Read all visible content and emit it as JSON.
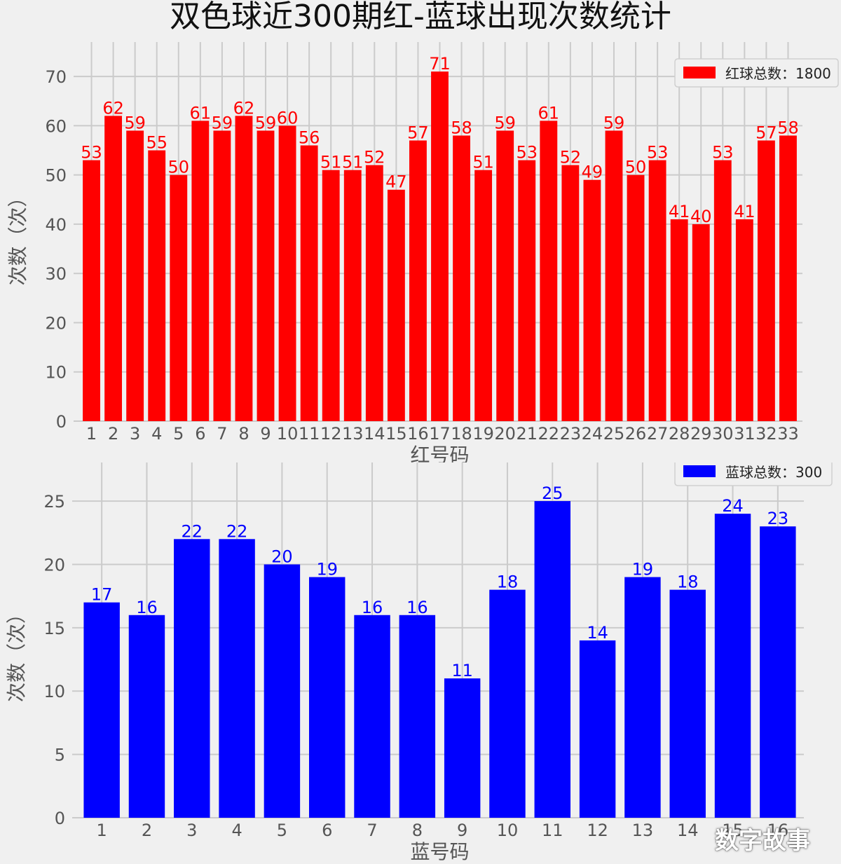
{
  "title": "双色球近300期红-蓝球出现次数统计",
  "watermark": "数字故事",
  "chart_data": [
    {
      "type": "bar",
      "categories": [
        "1",
        "2",
        "3",
        "4",
        "5",
        "6",
        "7",
        "8",
        "9",
        "10",
        "11",
        "12",
        "13",
        "14",
        "15",
        "16",
        "17",
        "18",
        "19",
        "20",
        "21",
        "22",
        "23",
        "24",
        "25",
        "26",
        "27",
        "28",
        "29",
        "30",
        "31",
        "32",
        "33"
      ],
      "values": [
        53,
        62,
        59,
        55,
        50,
        61,
        59,
        62,
        59,
        60,
        56,
        51,
        51,
        52,
        47,
        57,
        71,
        58,
        51,
        59,
        53,
        61,
        52,
        49,
        59,
        50,
        53,
        41,
        40,
        53,
        41,
        57,
        58
      ],
      "color": "#ff0000",
      "xlabel": "红号码",
      "ylabel": "次数（次）",
      "ylim": [
        0,
        75
      ],
      "yticks": [
        0,
        10,
        20,
        30,
        40,
        50,
        60,
        70
      ],
      "legend": "红球总数：1800",
      "legend_position": "top-right",
      "grid": true
    },
    {
      "type": "bar",
      "categories": [
        "1",
        "2",
        "3",
        "4",
        "5",
        "6",
        "7",
        "8",
        "9",
        "10",
        "11",
        "12",
        "13",
        "14",
        "15",
        "16"
      ],
      "values": [
        17,
        16,
        22,
        22,
        20,
        19,
        16,
        16,
        11,
        18,
        25,
        14,
        19,
        18,
        24,
        23
      ],
      "color": "#0000ff",
      "xlabel": "蓝号码",
      "ylabel": "次数（次）",
      "ylim": [
        0,
        26
      ],
      "yticks": [
        0,
        5,
        10,
        15,
        20,
        25
      ],
      "legend": "蓝球总数：300",
      "legend_position": "top-right",
      "grid": true
    }
  ]
}
